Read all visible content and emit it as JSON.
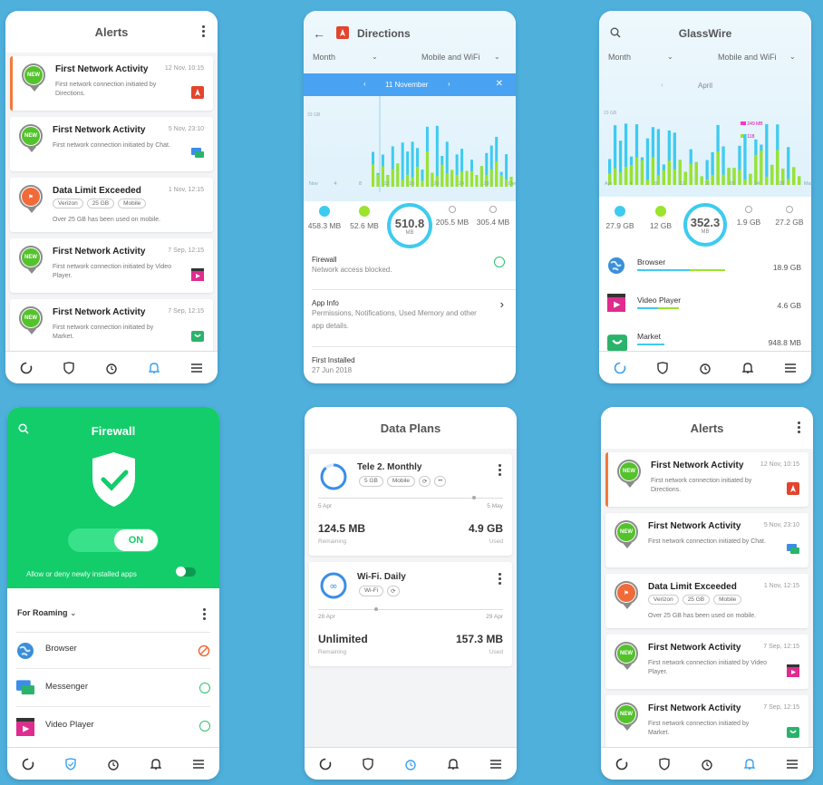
{
  "alerts": {
    "title": "Alerts",
    "items": [
      {
        "badge": "NEW",
        "title": "First Network Activity",
        "time": "12 Nov, 10:15",
        "desc": "First network connection initiated by Directions."
      },
      {
        "badge": "NEW",
        "title": "First Network Activity",
        "time": "5 Nov, 23:10",
        "desc": "First network connection initiated by Chat."
      },
      {
        "title": "Data Limit Exceeded",
        "time": "1 Nov, 12:15",
        "tags": [
          "Verizon",
          "25 GB",
          "Mobile"
        ],
        "desc": "Over 25 GB has been used on mobile."
      },
      {
        "badge": "NEW",
        "title": "First Network Activity",
        "time": "7 Sep, 12:15",
        "desc": "First network connection initiated by Video Player."
      },
      {
        "badge": "NEW",
        "title": "First Network Activity",
        "time": "7 Sep, 12:15",
        "desc": "First network connection initiated by Market."
      }
    ]
  },
  "directions": {
    "title": "Directions",
    "period": "Month",
    "network": "Mobile and WiFi",
    "date": "11 November",
    "ymax": "33 GB",
    "xticks": [
      "Nov",
      "4",
      "8",
      "12",
      "16",
      "20",
      "24",
      "28",
      "Dec"
    ],
    "stats": [
      "458.3 MB",
      "52.6 MB",
      "205.5 MB",
      "305.4 MB"
    ],
    "total": "510.8",
    "unit": "MB",
    "firewall_title": "Firewall",
    "firewall_sub": "Network access blocked.",
    "appinfo_title": "App Info",
    "appinfo_sub": "Permissions, Notifications, Used Memory and other app details.",
    "first_title": "First Installed",
    "first_sub": "27 Jun 2018"
  },
  "glasswire": {
    "title": "GlassWire",
    "period": "Month",
    "network": "Mobile and WiFi",
    "month": "April",
    "ymax": "23 GB",
    "legend": [
      "249 MB",
      "118"
    ],
    "xticks": [
      "Apr",
      "4",
      "8",
      "12",
      "16",
      "20",
      "24",
      "29",
      "May"
    ],
    "stats": [
      "27.9 GB",
      "12 GB",
      "1.9 GB",
      "27.2 GB"
    ],
    "total": "352.3",
    "unit": "MB",
    "apps": [
      {
        "name": "Browser",
        "value": "18.9 GB",
        "share": 0.6
      },
      {
        "name": "Video Player",
        "value": "4.6 GB",
        "share": 0.25
      },
      {
        "name": "Market",
        "value": "948.8 MB",
        "share": 0.15
      }
    ]
  },
  "firewall": {
    "title": "Firewall",
    "toggle": "ON",
    "hint": "Allow or deny newly installed apps",
    "filter": "For Roaming",
    "apps": [
      "Browser",
      "Messenger",
      "Video Player"
    ]
  },
  "plans": {
    "title": "Data Plans",
    "items": [
      {
        "name": "Tele 2. Monthly",
        "tags": [
          "5 GB",
          "Mobile"
        ],
        "start": "5 Apr",
        "end": "5 May",
        "remaining": "124.5 MB",
        "used": "4.9 GB",
        "remaining_label": "Remaining",
        "used_label": "Used"
      },
      {
        "name": "Wi-Fi. Daily",
        "tags": [
          "Wi-Fi"
        ],
        "start": "28 Apr",
        "end": "29 Apr",
        "remaining": "Unlimited",
        "used": "157.3 MB",
        "remaining_label": "Remaining",
        "used_label": "Used"
      }
    ]
  },
  "colors": {
    "green": "#13cc6a",
    "blue": "#3ecbf0",
    "lime": "#9be32d",
    "accent": "#4aa2f2"
  }
}
